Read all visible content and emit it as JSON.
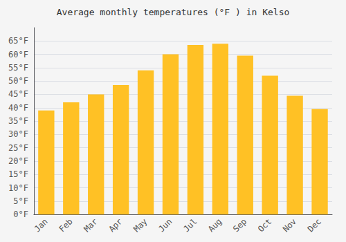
{
  "chart_data": {
    "type": "bar",
    "title": "Average monthly temperatures (°F ) in Kelso",
    "categories": [
      "Jan",
      "Feb",
      "Mar",
      "Apr",
      "May",
      "Jun",
      "Jul",
      "Aug",
      "Sep",
      "Oct",
      "Nov",
      "Dec"
    ],
    "values": [
      39,
      42,
      45,
      48.5,
      54,
      60,
      63.5,
      64,
      59.5,
      52,
      44.5,
      39.5
    ],
    "color": "#FFC125",
    "ylim": [
      0,
      70
    ],
    "yticks": [
      {
        "value": 0,
        "label": "0°F"
      },
      {
        "value": 5,
        "label": "5°F"
      },
      {
        "value": 10,
        "label": "10°F"
      },
      {
        "value": 15,
        "label": "15°F"
      },
      {
        "value": 20,
        "label": "20°F"
      },
      {
        "value": 25,
        "label": "25°F"
      },
      {
        "value": 30,
        "label": "30°F"
      },
      {
        "value": 35,
        "label": "35°F"
      },
      {
        "value": 40,
        "label": "40°F"
      },
      {
        "value": 45,
        "label": "45°F"
      },
      {
        "value": 50,
        "label": "50°F"
      },
      {
        "value": 55,
        "label": "55°F"
      },
      {
        "value": 60,
        "label": "60°F"
      },
      {
        "value": 65,
        "label": "65°F"
      }
    ],
    "grid": true
  }
}
